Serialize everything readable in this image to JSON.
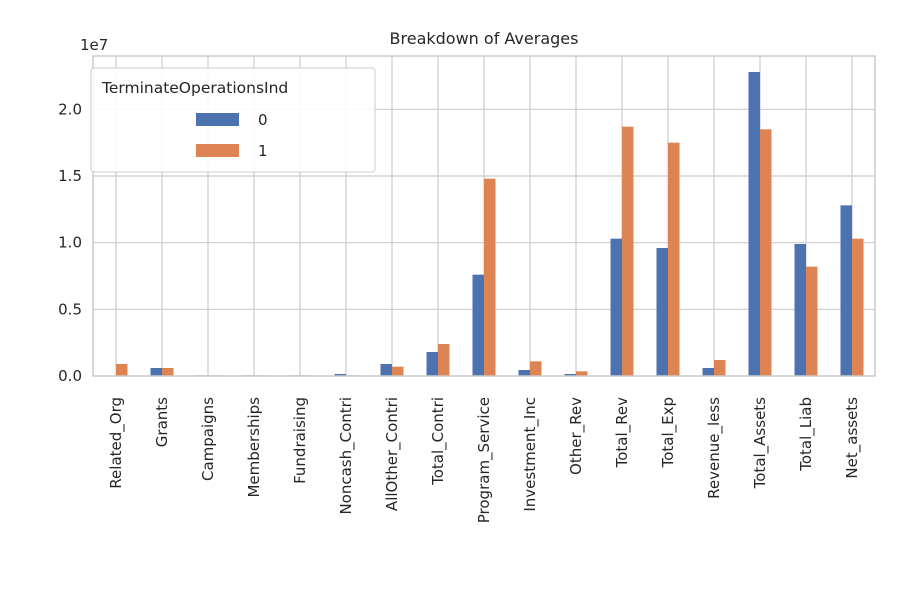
{
  "chart_data": {
    "type": "bar",
    "title": "Breakdown of Averages",
    "xlabel": "",
    "ylabel": "",
    "offset_label": "1e7",
    "ylim": [
      0,
      2.4
    ],
    "yticks": [
      "0.0",
      "0.5",
      "1.0",
      "1.5",
      "2.0"
    ],
    "grid": true,
    "legend": {
      "title": "TerminateOperationsInd",
      "placement": "top-left"
    },
    "categories": [
      "Related_Org",
      "Grants",
      "Campaigns",
      "Memberships",
      "Fundraising",
      "Noncash_Contri",
      "AllOther_Contri",
      "Total_Contri",
      "Program_Service",
      "Investment_Inc",
      "Other_Rev",
      "Total_Rev",
      "Total_Exp",
      "Revenue_less",
      "Total_Assets",
      "Total_Liab",
      "Net_assets"
    ],
    "series": [
      {
        "name": "0",
        "color": "#4c72b0",
        "values": [
          0.0,
          0.06,
          0.005,
          0.005,
          0.005,
          0.015,
          0.09,
          0.18,
          0.76,
          0.045,
          0.015,
          1.03,
          0.96,
          0.06,
          2.28,
          0.99,
          1.28
        ]
      },
      {
        "name": "1",
        "color": "#dd8452",
        "values": [
          0.09,
          0.06,
          0.005,
          0.005,
          0.005,
          0.005,
          0.07,
          0.24,
          1.48,
          0.11,
          0.035,
          1.87,
          1.75,
          0.12,
          1.85,
          0.82,
          1.03
        ]
      }
    ]
  }
}
